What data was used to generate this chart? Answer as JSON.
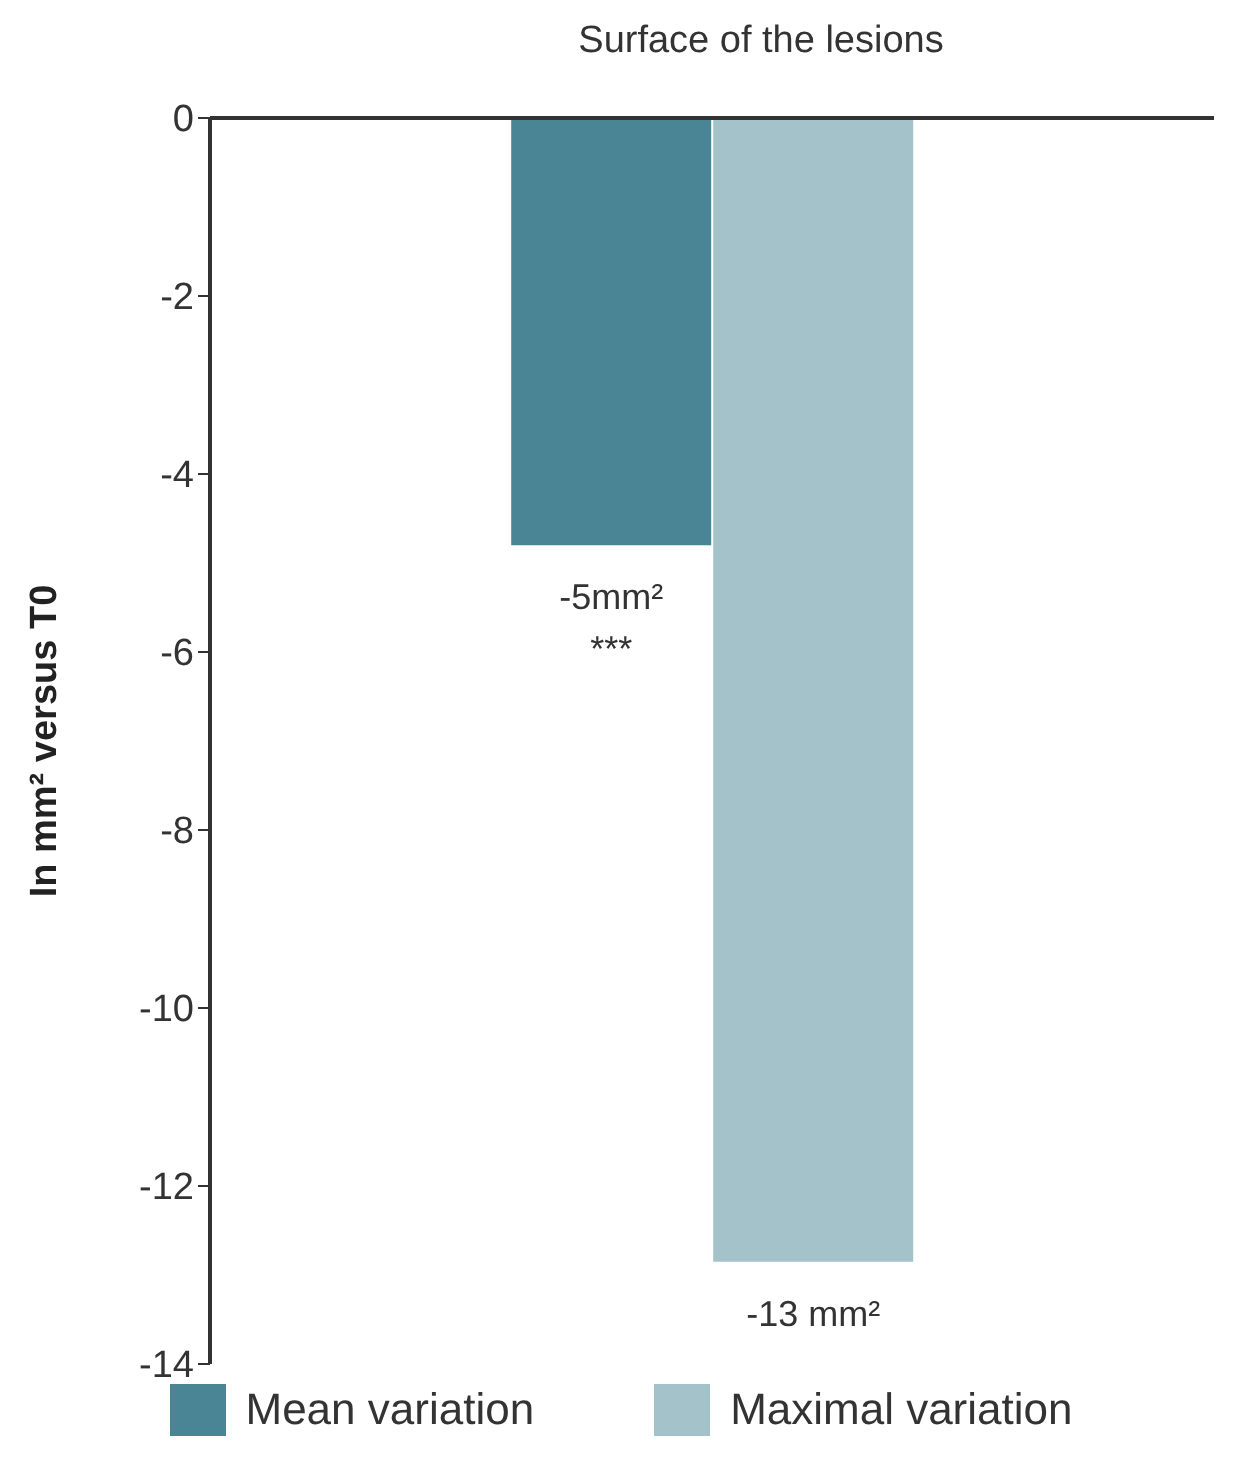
{
  "chart_data": {
    "type": "bar",
    "title": "Surface of the lesions",
    "ylabel": "In mm² versus T0",
    "categories": [
      null
    ],
    "series": [
      {
        "name": "Mean variation",
        "color": "#4a8596",
        "values": [
          -4.8
        ],
        "value_labels": [
          "-5mm²"
        ]
      },
      {
        "name": "Maximal variation",
        "color": "#a4c2c9",
        "values": [
          -12.85
        ],
        "value_labels": [
          "-13 mm²"
        ]
      }
    ],
    "ylim": [
      -14,
      0
    ],
    "yticks": [
      0,
      -2,
      -4,
      -6,
      -8,
      -10,
      -12,
      -14
    ],
    "legend": "bottom",
    "annotations": [
      "***"
    ]
  }
}
